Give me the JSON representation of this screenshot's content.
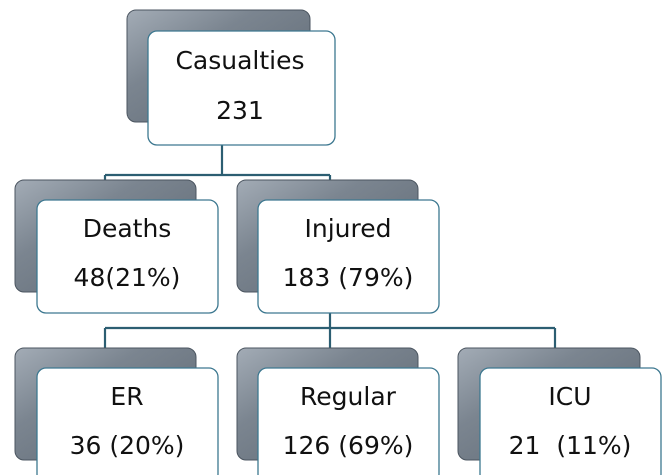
{
  "nodes": [
    {
      "label": "Casualties",
      "value": "231"
    },
    {
      "label": "Deaths",
      "value": "48(21%)"
    },
    {
      "label": "Injured",
      "value": "183 (79%)"
    },
    {
      "label": "ER",
      "value": "36 (20%)"
    },
    {
      "label": "Regular",
      "value": "126 (69%)"
    },
    {
      "label": "ICU",
      "value": "21  (11%)"
    }
  ]
}
